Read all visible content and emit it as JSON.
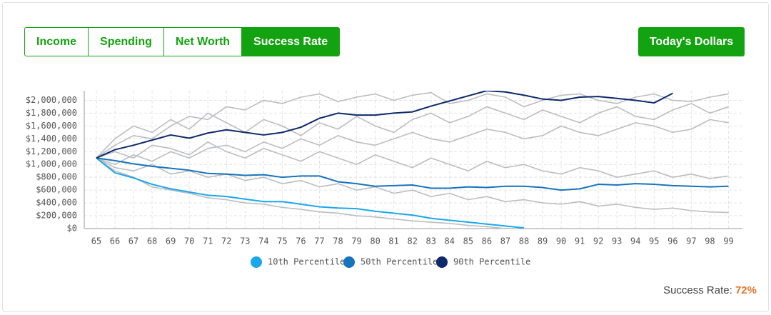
{
  "tabs": [
    "Income",
    "Spending",
    "Net Worth",
    "Success Rate"
  ],
  "active_tab": 3,
  "dollars_button": "Today's Dollars",
  "success_rate": {
    "label": "Success Rate:",
    "value": "72%"
  },
  "chart_data": {
    "type": "line",
    "x": [
      65,
      66,
      67,
      68,
      69,
      70,
      71,
      72,
      73,
      74,
      75,
      76,
      77,
      78,
      79,
      80,
      81,
      82,
      83,
      84,
      85,
      86,
      87,
      88,
      89,
      90,
      91,
      92,
      93,
      94,
      95,
      96,
      97,
      98,
      99
    ],
    "xticks": [
      65,
      66,
      67,
      68,
      69,
      70,
      71,
      72,
      73,
      74,
      75,
      76,
      77,
      78,
      79,
      80,
      81,
      82,
      83,
      84,
      85,
      86,
      87,
      88,
      89,
      90,
      91,
      92,
      93,
      94,
      95,
      96,
      97,
      98,
      99
    ],
    "xlim": [
      64.35,
      99.75
    ],
    "ylim": [
      0,
      2150000
    ],
    "yticks": [
      {
        "value": 0,
        "label": "$0"
      },
      {
        "value": 200000,
        "label": "$200,000"
      },
      {
        "value": 400000,
        "label": "$400,000"
      },
      {
        "value": 600000,
        "label": "$600,000"
      },
      {
        "value": 800000,
        "label": "$800,000"
      },
      {
        "value": 1000000,
        "label": "$1,000,000"
      },
      {
        "value": 1200000,
        "label": "$1,200,000"
      },
      {
        "value": 1400000,
        "label": "$1,400,000"
      },
      {
        "value": 1600000,
        "label": "$1,600,000"
      },
      {
        "value": 1800000,
        "label": "$1,800,000"
      },
      {
        "value": 2000000,
        "label": "$2,000,000"
      }
    ],
    "grid": true,
    "legend": "bottom",
    "series": [
      {
        "color": "#bbbdc0",
        "values": [
          1100000,
          1300000,
          1450000,
          1400000,
          1600000,
          1750000,
          1700000,
          1900000,
          1850000,
          2000000,
          1950000,
          2050000,
          2100000,
          1980000,
          2050000,
          2100000,
          2000000,
          2080000,
          2120000,
          1950000,
          2000000,
          2100000,
          2050000,
          1900000,
          2000000,
          2080000,
          2100000,
          2000000,
          1950000,
          2050000,
          2100000,
          2000000,
          1980000,
          2050000,
          2100000
        ]
      },
      {
        "color": "#bbbdc0",
        "values": [
          1100000,
          1000000,
          1150000,
          1050000,
          1200000,
          1100000,
          1250000,
          1300000,
          1200000,
          1350000,
          1250000,
          1400000,
          1300000,
          1450000,
          1350000,
          1300000,
          1400000,
          1500000,
          1400000,
          1350000,
          1450000,
          1550000,
          1500000,
          1400000,
          1450000,
          1600000,
          1500000,
          1450000,
          1550000,
          1650000,
          1600000,
          1500000,
          1550000,
          1700000,
          1650000
        ]
      },
      {
        "color": "#bbbdc0",
        "values": [
          1100000,
          950000,
          900000,
          1000000,
          850000,
          900000,
          800000,
          850000,
          750000,
          800000,
          700000,
          750000,
          650000,
          700000,
          600000,
          650000,
          550000,
          600000,
          500000,
          550000,
          450000,
          500000,
          420000,
          450000,
          400000,
          380000,
          420000,
          350000,
          380000,
          330000,
          300000,
          320000,
          280000,
          260000,
          250000
        ]
      },
      {
        "color": "#bbbdc0",
        "values": [
          1100000,
          900000,
          800000,
          650000,
          600000,
          550000,
          480000,
          450000,
          400000,
          380000,
          330000,
          300000,
          260000,
          240000,
          200000,
          180000,
          150000,
          120000,
          100000,
          80000,
          50000,
          30000,
          0,
          null,
          null,
          null,
          null,
          null,
          null,
          null,
          null,
          null,
          null,
          null,
          null
        ]
      },
      {
        "color": "#bbbdc0",
        "values": [
          1100000,
          1200000,
          1100000,
          1300000,
          1250000,
          1150000,
          1350000,
          1200000,
          1100000,
          1250000,
          1150000,
          1050000,
          1200000,
          1100000,
          1000000,
          1150000,
          1050000,
          950000,
          1100000,
          1000000,
          900000,
          1050000,
          950000,
          1000000,
          900000,
          850000,
          950000,
          900000,
          800000,
          850000,
          900000,
          800000,
          850000,
          780000,
          820000
        ]
      },
      {
        "color": "#bbbdc0",
        "values": [
          1100000,
          1400000,
          1600000,
          1500000,
          1700000,
          1550000,
          1800000,
          1650000,
          1500000,
          1700000,
          1600000,
          1450000,
          1650000,
          1550000,
          1750000,
          1600000,
          1500000,
          1700000,
          1800000,
          1650000,
          1750000,
          1900000,
          1800000,
          1700000,
          1850000,
          1750000,
          1650000,
          1800000,
          1900000,
          1750000,
          1700000,
          1850000,
          1950000,
          1800000,
          1900000
        ]
      },
      {
        "name": "10th Percentile",
        "color": "#1aa7ec",
        "values": [
          1100000,
          870000,
          790000,
          690000,
          620000,
          570000,
          520000,
          500000,
          460000,
          420000,
          420000,
          380000,
          340000,
          320000,
          310000,
          270000,
          240000,
          210000,
          160000,
          130000,
          100000,
          70000,
          40000,
          10000,
          null,
          null,
          null,
          null,
          null,
          null,
          null,
          null,
          null,
          null,
          null
        ]
      },
      {
        "name": "50th Percentile",
        "color": "#1673bd",
        "values": [
          1100000,
          1060000,
          1010000,
          970000,
          940000,
          910000,
          860000,
          850000,
          830000,
          840000,
          800000,
          820000,
          820000,
          730000,
          700000,
          660000,
          670000,
          680000,
          630000,
          630000,
          650000,
          640000,
          660000,
          660000,
          640000,
          600000,
          620000,
          690000,
          680000,
          700000,
          690000,
          670000,
          660000,
          650000,
          660000
        ]
      },
      {
        "name": "90th Percentile",
        "color": "#0e2a6b",
        "values": [
          1100000,
          1230000,
          1300000,
          1380000,
          1460000,
          1410000,
          1490000,
          1540000,
          1500000,
          1460000,
          1500000,
          1580000,
          1720000,
          1800000,
          1770000,
          1770000,
          1800000,
          1820000,
          1910000,
          1990000,
          2070000,
          2150000,
          2130000,
          2080000,
          2020000,
          2000000,
          2050000,
          2060000,
          2030000,
          2000000,
          1960000,
          2110000,
          null,
          null,
          null
        ]
      }
    ]
  }
}
